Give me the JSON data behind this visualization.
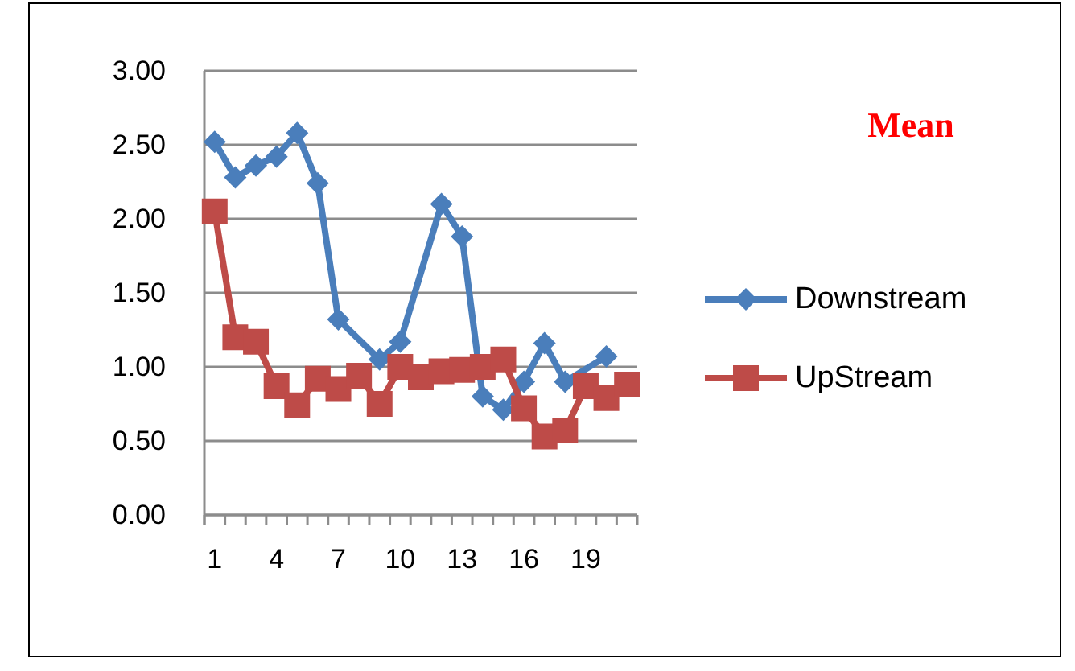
{
  "chart_data": {
    "type": "line",
    "title": "Mean",
    "categories": [
      "1",
      null,
      null,
      "4",
      null,
      null,
      "7",
      null,
      null,
      "10",
      null,
      null,
      "13",
      null,
      null,
      "16",
      null,
      null,
      "19",
      null,
      null
    ],
    "series": [
      {
        "name": "Downstream",
        "color": "#4a7ebb",
        "marker": "diamond",
        "values": [
          2.52,
          2.28,
          2.36,
          2.42,
          2.58,
          2.24,
          1.32,
          null,
          1.05,
          1.17,
          null,
          2.1,
          1.88,
          0.8,
          0.71,
          0.9,
          1.16,
          0.9,
          null,
          1.07,
          null
        ]
      },
      {
        "name": "UpStream",
        "color": "#be4b48",
        "marker": "square",
        "values": [
          2.05,
          1.2,
          1.17,
          0.87,
          0.74,
          0.92,
          0.85,
          0.94,
          0.75,
          1.0,
          0.93,
          0.97,
          0.98,
          1.0,
          1.05,
          0.72,
          0.53,
          0.57,
          0.87,
          0.79,
          0.88
        ]
      }
    ],
    "ylim": [
      0,
      3
    ],
    "yticks": [
      {
        "value": 0,
        "label": "0.00"
      },
      {
        "value": 0.5,
        "label": "0.50"
      },
      {
        "value": 1,
        "label": "1.00"
      },
      {
        "value": 1.5,
        "label": "1.50"
      },
      {
        "value": 2,
        "label": "2.00"
      },
      {
        "value": 2.5,
        "label": "2.50"
      },
      {
        "value": 3,
        "label": "3.00"
      }
    ],
    "grid": "y",
    "legend": "right"
  }
}
